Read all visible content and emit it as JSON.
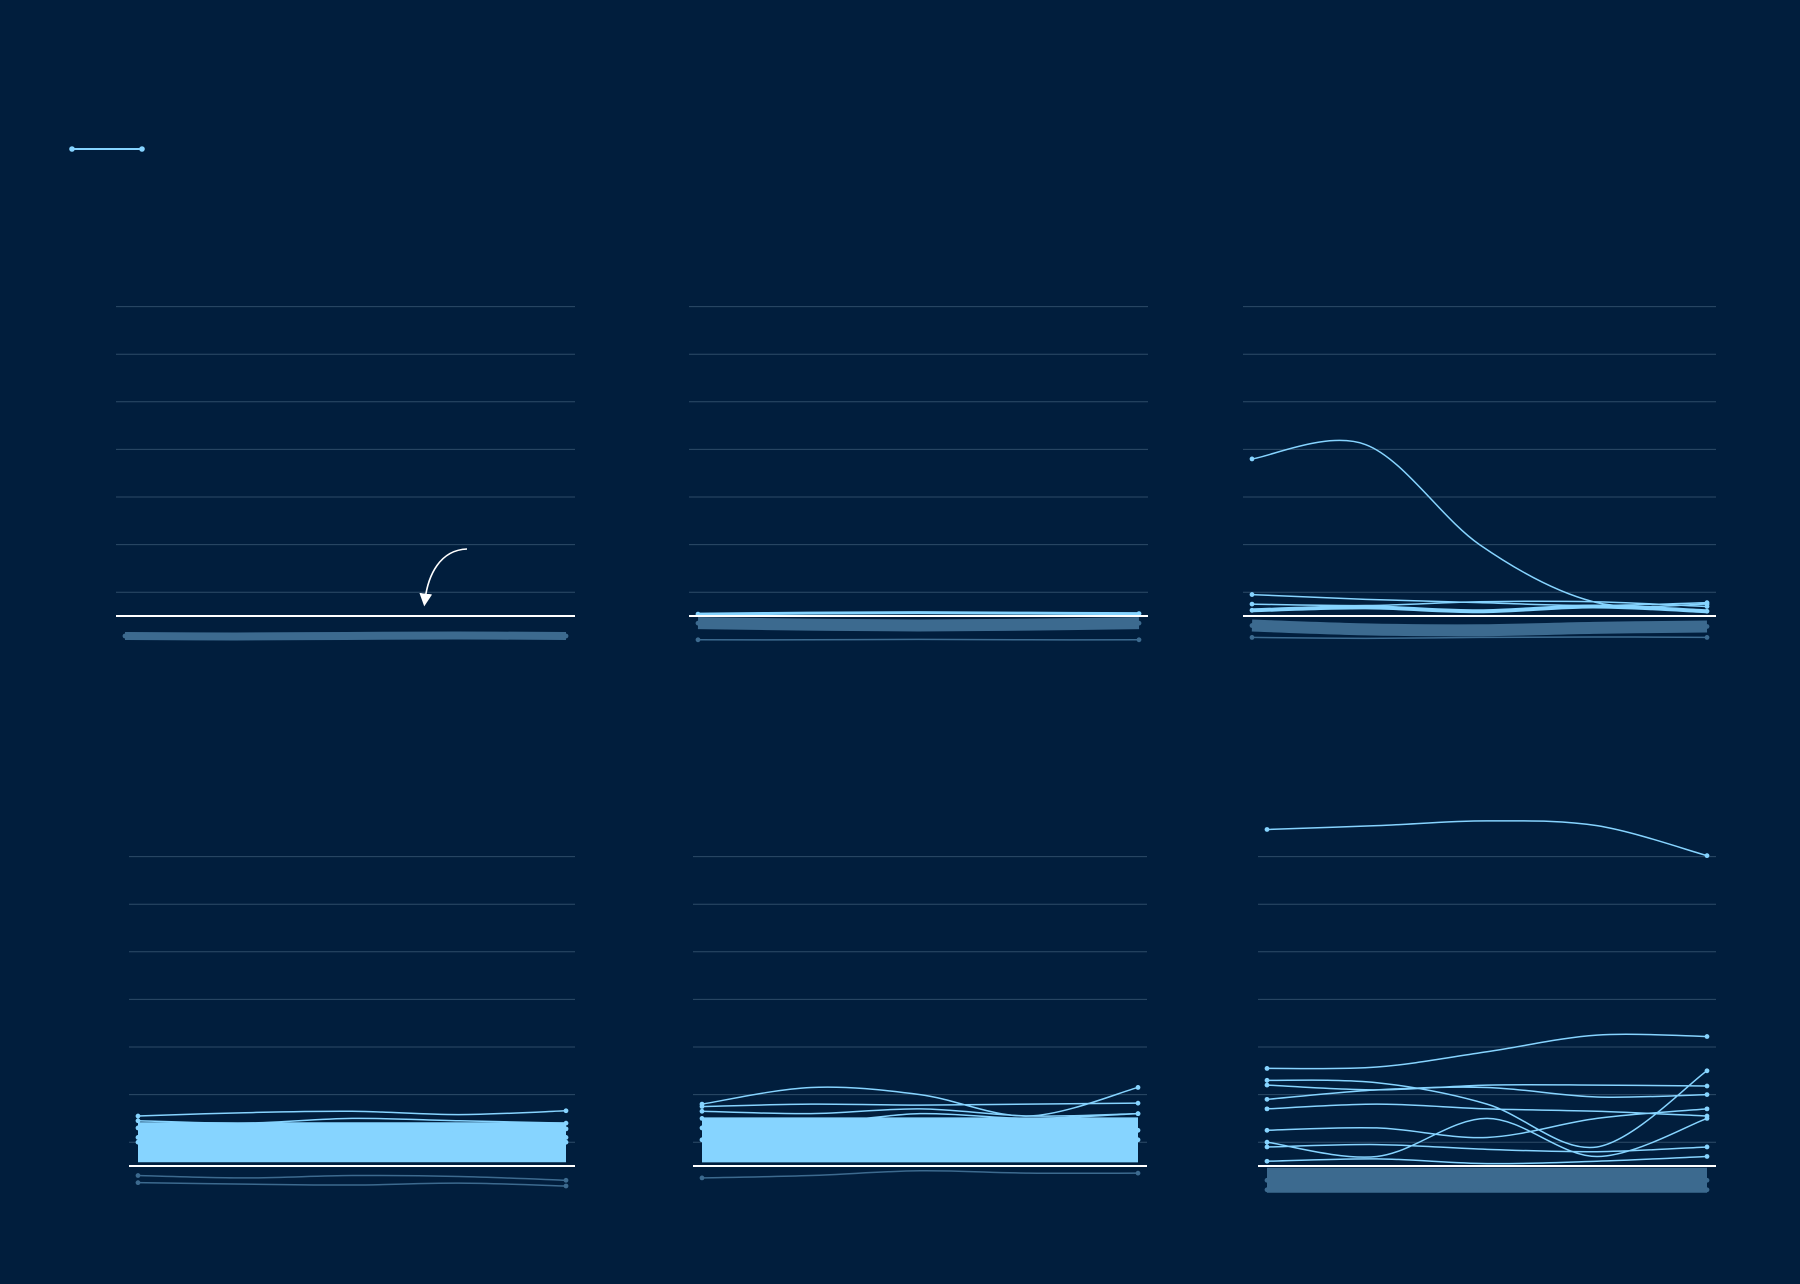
{
  "chart_data": [
    {
      "type": "line",
      "x": [
        0,
        1,
        2,
        3,
        4
      ],
      "xlim": [
        0,
        4
      ],
      "ylim": [
        -0.6,
        6.5
      ],
      "yticks": [
        0.5,
        1.5,
        2.5,
        3.5,
        4.5,
        5.5,
        6.5
      ],
      "grid": true,
      "series": [
        {
          "color": "#3c6a8f",
          "width": 8,
          "values": [
            -0.42,
            -0.43,
            -0.42,
            -0.41,
            -0.42
          ]
        }
      ]
    },
    {
      "type": "line",
      "x": [
        0,
        1,
        2,
        3,
        4
      ],
      "xlim": [
        0,
        4
      ],
      "ylim": [
        -0.6,
        6.5
      ],
      "yticks": [
        0.5,
        1.5,
        2.5,
        3.5,
        4.5,
        5.5,
        6.5
      ],
      "grid": true,
      "series": [
        {
          "color": "#3c6a8f",
          "width": 12,
          "values": [
            -0.15,
            -0.18,
            -0.2,
            -0.18,
            -0.15
          ]
        },
        {
          "color": "#3c6a8f",
          "width": 1.5,
          "values": [
            -0.5,
            -0.5,
            -0.49,
            -0.5,
            -0.5
          ]
        },
        {
          "color": "#86d4ff",
          "width": 3,
          "values": [
            0.04,
            0.06,
            0.07,
            0.06,
            0.05
          ]
        }
      ]
    },
    {
      "type": "line",
      "x": [
        0,
        1,
        2,
        3,
        4
      ],
      "xlim": [
        0,
        4
      ],
      "ylim": [
        -0.6,
        6.5
      ],
      "yticks": [
        0.5,
        1.5,
        2.5,
        3.5,
        4.5,
        5.5,
        6.5
      ],
      "grid": true,
      "series": [
        {
          "color": "#3c6a8f",
          "width": 12,
          "values": [
            -0.2,
            -0.28,
            -0.3,
            -0.25,
            -0.22
          ]
        },
        {
          "color": "#3c6a8f",
          "width": 1.5,
          "values": [
            -0.45,
            -0.47,
            -0.45,
            -0.44,
            -0.45
          ]
        },
        {
          "color": "#86d4ff",
          "width": 1.5,
          "values": [
            3.3,
            3.6,
            1.5,
            0.3,
            0.25
          ]
        },
        {
          "color": "#86d4ff",
          "width": 1.5,
          "values": [
            0.45,
            0.35,
            0.28,
            0.22,
            0.28
          ]
        },
        {
          "color": "#86d4ff",
          "width": 1.5,
          "values": [
            0.25,
            0.22,
            0.3,
            0.3,
            0.2
          ]
        },
        {
          "color": "#86d4ff",
          "width": 4,
          "values": [
            0.12,
            0.18,
            0.1,
            0.2,
            0.1
          ]
        }
      ]
    },
    {
      "type": "line",
      "x": [
        0,
        1,
        2,
        3,
        4
      ],
      "xlim": [
        0,
        4
      ],
      "ylim": [
        -0.6,
        6.5
      ],
      "yticks": [
        0.5,
        1.5,
        2.5,
        3.5,
        4.5,
        5.5,
        6.5
      ],
      "grid": true,
      "series": [
        {
          "color": "#3c6a8f",
          "width": 1.5,
          "values": [
            -0.2,
            -0.25,
            -0.2,
            -0.22,
            -0.3
          ]
        },
        {
          "color": "#3c6a8f",
          "width": 1.5,
          "values": [
            -0.35,
            -0.38,
            -0.4,
            -0.36,
            -0.42
          ]
        },
        {
          "color": "#86d4ff",
          "width": 40,
          "values": [
            0.5,
            0.5,
            0.5,
            0.5,
            0.5
          ]
        },
        {
          "color": "#86d4ff",
          "width": 1.5,
          "values": [
            1.05,
            1.12,
            1.15,
            1.08,
            1.16
          ]
        },
        {
          "color": "#86d4ff",
          "width": 1.5,
          "values": [
            0.95,
            0.9,
            1.0,
            0.95,
            0.9
          ]
        },
        {
          "color": "#86d4ff",
          "width": 1.5,
          "values": [
            0.8,
            0.75,
            0.85,
            0.7,
            0.78
          ]
        },
        {
          "color": "#86d4ff",
          "width": 1.5,
          "values": [
            0.6,
            0.7,
            0.65,
            0.75,
            0.6
          ]
        }
      ]
    },
    {
      "type": "line",
      "x": [
        0,
        1,
        2,
        3,
        4
      ],
      "xlim": [
        0,
        4
      ],
      "ylim": [
        -0.6,
        6.5
      ],
      "yticks": [
        0.5,
        1.5,
        2.5,
        3.5,
        4.5,
        5.5,
        6.5
      ],
      "grid": true,
      "series": [
        {
          "color": "#3c6a8f",
          "width": 1.5,
          "values": [
            -0.25,
            -0.2,
            -0.1,
            -0.15,
            -0.15
          ]
        },
        {
          "color": "#86d4ff",
          "width": 45,
          "values": [
            0.55,
            0.55,
            0.55,
            0.55,
            0.55
          ]
        },
        {
          "color": "#86d4ff",
          "width": 1.5,
          "values": [
            1.3,
            1.65,
            1.5,
            1.05,
            1.65
          ]
        },
        {
          "color": "#86d4ff",
          "width": 1.5,
          "values": [
            1.25,
            1.3,
            1.28,
            1.3,
            1.32
          ]
        },
        {
          "color": "#86d4ff",
          "width": 1.5,
          "values": [
            1.15,
            1.1,
            1.2,
            1.05,
            1.1
          ]
        },
        {
          "color": "#86d4ff",
          "width": 1.5,
          "values": [
            1.0,
            0.9,
            1.1,
            1.0,
            1.1
          ]
        },
        {
          "color": "#86d4ff",
          "width": 1.5,
          "values": [
            0.8,
            0.85,
            0.7,
            0.8,
            0.75
          ]
        }
      ]
    },
    {
      "type": "line",
      "x": [
        0,
        1,
        2,
        3,
        4
      ],
      "xlim": [
        0,
        4
      ],
      "ylim": [
        -0.6,
        7.5
      ],
      "yticks": [
        0.5,
        1.5,
        2.5,
        3.5,
        4.5,
        5.5,
        6.5
      ],
      "grid": true,
      "series": [
        {
          "color": "#3c6a8f",
          "width": 25,
          "values": [
            -0.3,
            -0.3,
            -0.3,
            -0.3,
            -0.3
          ]
        },
        {
          "color": "#3c6a8f",
          "width": 1.5,
          "values": [
            -0.5,
            -0.5,
            -0.48,
            -0.5,
            -0.5
          ]
        },
        {
          "color": "#86d4ff",
          "width": 1.5,
          "values": [
            7.07,
            7.15,
            7.25,
            7.15,
            6.52
          ]
        },
        {
          "color": "#86d4ff",
          "width": 1.5,
          "values": [
            2.05,
            2.08,
            2.4,
            2.75,
            2.72
          ]
        },
        {
          "color": "#86d4ff",
          "width": 1.5,
          "values": [
            1.8,
            1.75,
            1.3,
            0.4,
            2.0
          ]
        },
        {
          "color": "#86d4ff",
          "width": 1.5,
          "values": [
            1.7,
            1.6,
            1.7,
            1.7,
            1.68
          ]
        },
        {
          "color": "#86d4ff",
          "width": 1.5,
          "values": [
            1.4,
            1.6,
            1.65,
            1.45,
            1.5
          ]
        },
        {
          "color": "#86d4ff",
          "width": 1.5,
          "values": [
            1.2,
            1.3,
            1.2,
            1.15,
            1.05
          ]
        },
        {
          "color": "#86d4ff",
          "width": 1.5,
          "values": [
            0.75,
            0.8,
            0.6,
            1.0,
            1.2
          ]
        },
        {
          "color": "#86d4ff",
          "width": 1.5,
          "values": [
            0.5,
            0.2,
            1.0,
            0.2,
            1.0
          ]
        },
        {
          "color": "#86d4ff",
          "width": 1.5,
          "values": [
            0.4,
            0.45,
            0.35,
            0.3,
            0.4
          ]
        },
        {
          "color": "#86d4ff",
          "width": 1.5,
          "values": [
            0.1,
            0.15,
            0.05,
            0.1,
            0.2
          ]
        }
      ]
    }
  ]
}
